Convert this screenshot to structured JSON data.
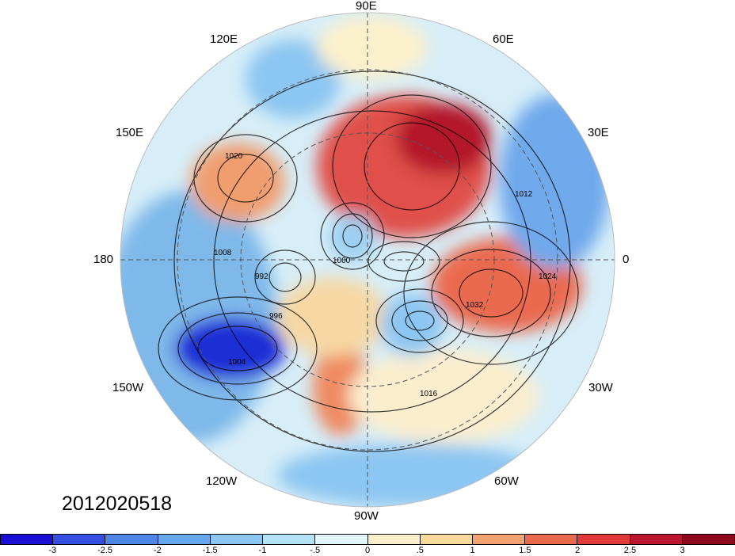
{
  "map": {
    "projection": "north polar stereographic",
    "longitude_labels": [
      {
        "id": "90e",
        "text": "90E"
      },
      {
        "id": "60e",
        "text": "60E"
      },
      {
        "id": "30e",
        "text": "30E"
      },
      {
        "id": "0",
        "text": "0"
      },
      {
        "id": "30w",
        "text": "30W"
      },
      {
        "id": "60w",
        "text": "60W"
      },
      {
        "id": "90w",
        "text": "90W"
      },
      {
        "id": "120w",
        "text": "120W"
      },
      {
        "id": "150w",
        "text": "150W"
      },
      {
        "id": "180",
        "text": "180"
      },
      {
        "id": "150e",
        "text": "150E"
      },
      {
        "id": "120e",
        "text": "120E"
      }
    ],
    "isobar_labels": [
      "1008",
      "1012",
      "1016",
      "1020",
      "1024",
      "1032",
      "996",
      "1004",
      "1000",
      "992"
    ],
    "timestamp": "2012020518"
  },
  "colorbar": {
    "tick_labels": [
      "-3",
      "-2.5",
      "-2",
      "-1.5",
      "-1",
      "-.5",
      "0",
      ".5",
      "1",
      "1.5",
      "2",
      "2.5",
      "3"
    ],
    "colors": [
      "#1a0fd4",
      "#3550e0",
      "#4f86e6",
      "#66a6ee",
      "#8cc6f2",
      "#b4e3f6",
      "#e2f6fa",
      "#fbf0cc",
      "#f9d99a",
      "#f3a272",
      "#ea6a50",
      "#e03a3a",
      "#bb1530",
      "#8e0a1c"
    ]
  }
}
